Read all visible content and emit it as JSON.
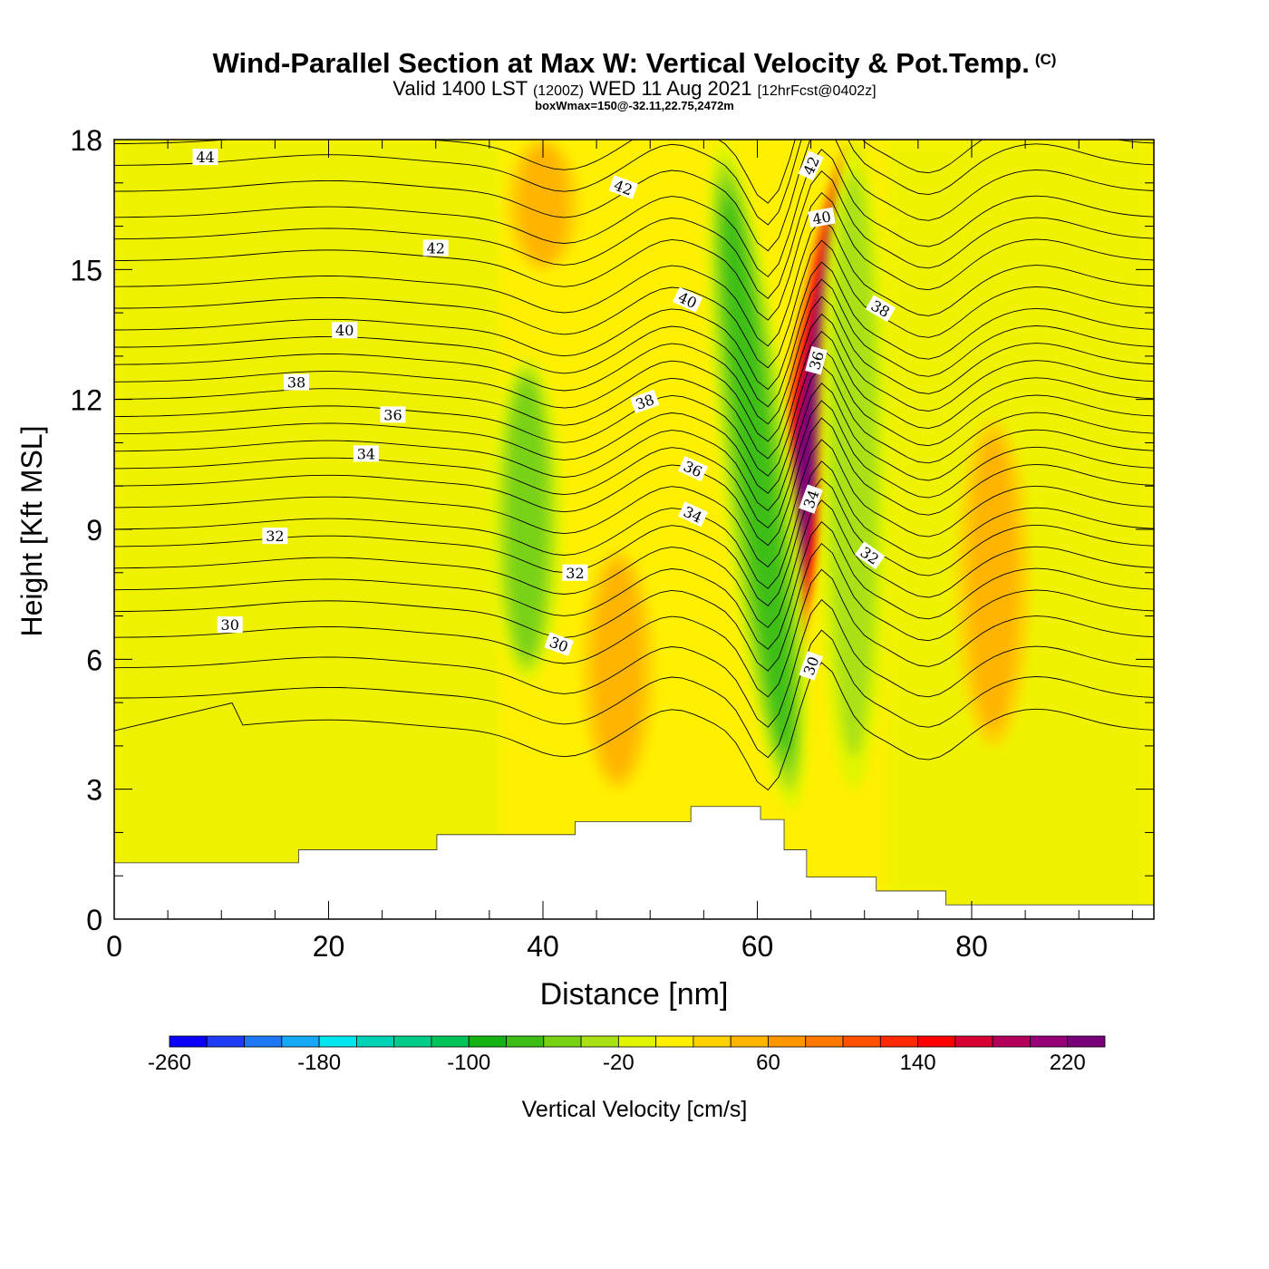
{
  "header": {
    "title": "Wind-Parallel Section at Max W: Vertical Velocity & Pot.Temp.",
    "copyright": "(C)",
    "valid_prefix": "Valid 1400 LST",
    "valid_utc": "(1200Z)",
    "valid_date": "WED 11 Aug 2021",
    "forecast": "[12hrFcst@0402z]",
    "box_info": "boxWmax=150@-32.11,22.75,2472m"
  },
  "chart_data": {
    "type": "heatmap",
    "xlabel": "Distance [nm]",
    "ylabel": "Height [Kft MSL]",
    "xlim": [
      0,
      97
    ],
    "ylim": [
      0,
      18
    ],
    "x_ticks": [
      "0",
      "20",
      "40",
      "60",
      "80"
    ],
    "y_ticks": [
      "0",
      "3",
      "6",
      "9",
      "12",
      "15",
      "18"
    ],
    "colorbar": {
      "label": "Vertical Velocity [cm/s]",
      "tick_labels": [
        "-260",
        "-180",
        "-100",
        "-20",
        "60",
        "140",
        "220"
      ],
      "levels": [
        -260,
        -240,
        -220,
        -200,
        -180,
        -160,
        -140,
        -120,
        -100,
        -80,
        -60,
        -40,
        -20,
        0,
        20,
        40,
        60,
        80,
        100,
        120,
        140,
        160,
        180,
        200,
        220,
        240
      ],
      "colors": [
        "#0a00f5",
        "#1e3cf5",
        "#1e78f5",
        "#14aaf5",
        "#00e6f0",
        "#00d2b4",
        "#00cd8c",
        "#00c35a",
        "#14b414",
        "#3cbe14",
        "#78d214",
        "#aae114",
        "#e1f500",
        "#fff000",
        "#ffd200",
        "#ffb400",
        "#ff9600",
        "#ff7800",
        "#ff5000",
        "#ff2800",
        "#ff0000",
        "#d70032",
        "#b4005a",
        "#960078",
        "#780078"
      ]
    },
    "isentrope_labels": [
      "44",
      "42",
      "40",
      "38",
      "36",
      "34",
      "32",
      "30"
    ],
    "w_features": [
      {
        "x": 65,
        "y_bottom": 4.5,
        "y_top": 18,
        "w_max": 230,
        "kind": "updraft"
      },
      {
        "x": 60,
        "y_bottom": 2.5,
        "y_top": 18,
        "w_min": -90,
        "kind": "downdraft"
      },
      {
        "x": 38.5,
        "y_bottom": 5.5,
        "y_top": 13,
        "w_min": -60,
        "kind": "downdraft"
      },
      {
        "x": 82,
        "y_bottom": 4,
        "y_top": 11.5,
        "w_max": 45,
        "kind": "updraft"
      },
      {
        "x": 40,
        "y_bottom": 15,
        "y_top": 18,
        "w_max": 45,
        "kind": "updraft"
      },
      {
        "x": 47,
        "y_bottom": 3,
        "y_top": 8.5,
        "w_max": 40,
        "kind": "updraft"
      },
      {
        "x": 69,
        "y_bottom": 3,
        "y_top": 18,
        "w_min": -55,
        "kind": "downdraft"
      }
    ],
    "terrain_kft": [
      {
        "x_start": 0,
        "x_end": 17.2,
        "height": 1.3
      },
      {
        "x_start": 17.2,
        "x_end": 30.1,
        "height": 1.6
      },
      {
        "x_start": 30.1,
        "x_end": 43.0,
        "height": 1.95
      },
      {
        "x_start": 43.0,
        "x_end": 53.8,
        "height": 2.25
      },
      {
        "x_start": 53.8,
        "x_end": 60.3,
        "height": 2.6
      },
      {
        "x_start": 60.3,
        "x_end": 62.5,
        "height": 2.3
      },
      {
        "x_start": 62.5,
        "x_end": 64.6,
        "height": 1.6
      },
      {
        "x_start": 64.6,
        "x_end": 71.1,
        "height": 0.97
      },
      {
        "x_start": 71.1,
        "x_end": 77.6,
        "height": 0.65
      },
      {
        "x_start": 77.6,
        "x_end": 97,
        "height": 0.33
      }
    ]
  }
}
